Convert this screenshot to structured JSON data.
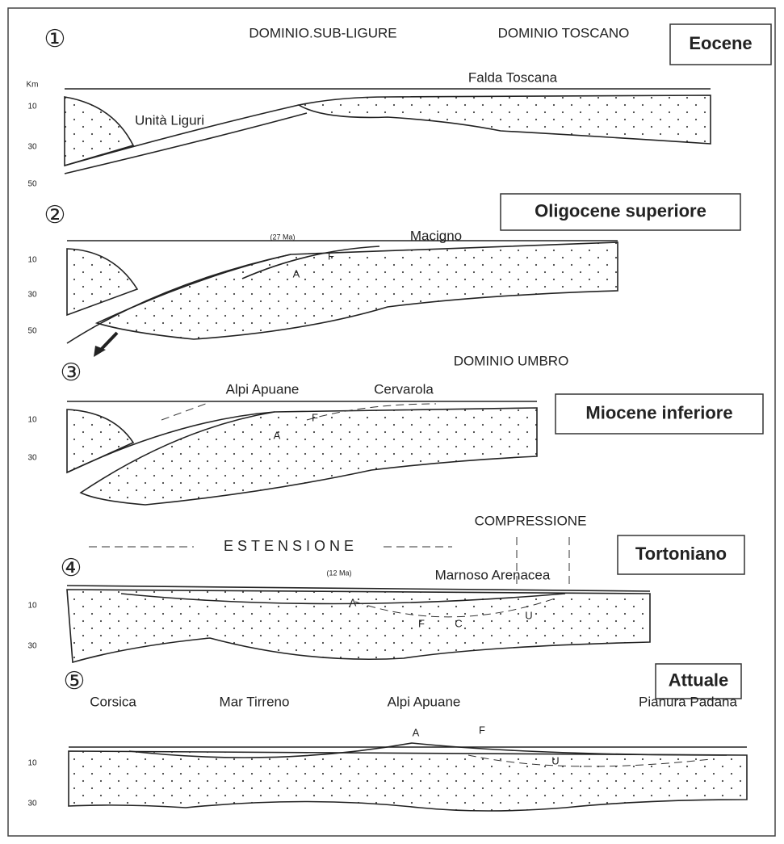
{
  "panels": [
    {
      "number": "①",
      "period": "Eocene",
      "labels": [
        "DOMINIO.SUB-LIGURE",
        "DOMINIO TOSCANO",
        "Falda Toscana",
        "Unità Liguri"
      ],
      "depth_ticks": [
        "Km",
        "10",
        "30",
        "50"
      ]
    },
    {
      "number": "②",
      "period": "Oligocene superiore",
      "labels": [
        "(27 Ma)",
        "Macigno",
        "F",
        "A"
      ],
      "depth_ticks": [
        "10",
        "30",
        "50"
      ]
    },
    {
      "number": "③",
      "period": "Miocene inferiore",
      "labels": [
        "DOMINIO UMBRO",
        "Alpi Apuane",
        "Cervarola",
        "F",
        "A"
      ],
      "depth_ticks": [
        "10",
        "30"
      ]
    },
    {
      "number": "④",
      "period": "Tortoniano",
      "labels": [
        "ESTENSIONE",
        "COMPRESSIONE",
        "(12 Ma)",
        "Marnoso Arenacea",
        "A",
        "F",
        "C",
        "U"
      ],
      "depth_ticks": [
        "10",
        "30"
      ]
    },
    {
      "number": "⑤",
      "period": "Attuale",
      "labels": [
        "Corsica",
        "Mar Tirreno",
        "Alpi Apuane",
        "Pianura Padana",
        "A",
        "F",
        "U"
      ],
      "depth_ticks": [
        "10",
        "30"
      ]
    }
  ]
}
